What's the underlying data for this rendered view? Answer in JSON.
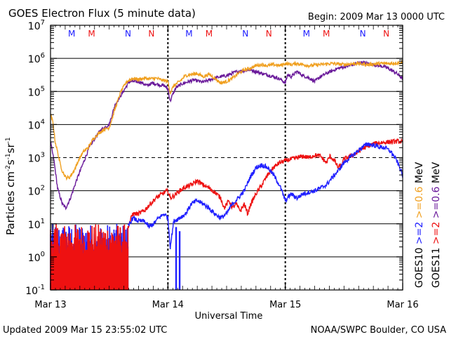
{
  "header": {
    "title": "GOES Electron Flux (5 minute data)",
    "begin": "Begin: 2009 Mar 13 0000 UTC"
  },
  "footer": {
    "updated": "Updated 2009 Mar 15 23:55:02 UTC",
    "credit": "NOAA/SWPC Boulder, CO USA"
  },
  "colors": {
    "g10_high": "#f0a020",
    "g10_low": "#2020ff",
    "g11_high": "#6a1a9a",
    "g11_low": "#ee1111",
    "marker_m": "#1a1aff",
    "marker_n_blue": "#1a1aff"
  },
  "right_legend": {
    "goes10": "GOES10",
    "goes11": "GOES11",
    "g10_low": ">=2",
    "g10_high": ">=0.6",
    "g11_low": ">=2",
    "g11_high": ">=0.6",
    "unit": "MeV"
  },
  "markers": [
    {
      "label": "M",
      "day": 0.18,
      "color": "#1a1aff"
    },
    {
      "label": "M",
      "day": 0.35,
      "color": "#ee1111"
    },
    {
      "label": "N",
      "day": 0.66,
      "color": "#1a1aff"
    },
    {
      "label": "N",
      "day": 0.86,
      "color": "#ee1111"
    },
    {
      "label": "M",
      "day": 1.18,
      "color": "#1a1aff"
    },
    {
      "label": "M",
      "day": 1.35,
      "color": "#ee1111"
    },
    {
      "label": "N",
      "day": 1.66,
      "color": "#1a1aff"
    },
    {
      "label": "N",
      "day": 1.86,
      "color": "#ee1111"
    },
    {
      "label": "M",
      "day": 2.18,
      "color": "#1a1aff"
    },
    {
      "label": "M",
      "day": 2.35,
      "color": "#ee1111"
    },
    {
      "label": "N",
      "day": 2.66,
      "color": "#1a1aff"
    },
    {
      "label": "N",
      "day": 2.86,
      "color": "#ee1111"
    }
  ],
  "chart_data": {
    "type": "line",
    "title": "GOES Electron Flux (5 minute data)",
    "xlabel": "Universal Time",
    "ylabel_main": "Particles cm",
    "ylabel_sup1": "-2",
    "ylabel_mid": "s",
    "ylabel_sup2": "-1",
    "ylabel_mid2": "sr",
    "ylabel_sup3": "-1",
    "x_unit": "days since Mar 13 0000 UTC",
    "xlim": [
      0,
      3
    ],
    "ylim": [
      0.1,
      10000000
    ],
    "y_scale": "log",
    "x_ticks": [
      {
        "value": 0,
        "label": "Mar 13"
      },
      {
        "value": 1,
        "label": "Mar 14"
      },
      {
        "value": 2,
        "label": "Mar 15"
      },
      {
        "value": 3,
        "label": "Mar 16"
      }
    ],
    "y_ticks": [
      {
        "exp": -1,
        "base": "10",
        "sup": "-1"
      },
      {
        "exp": 0,
        "base": "10",
        "sup": "0"
      },
      {
        "exp": 1,
        "base": "10",
        "sup": "1"
      },
      {
        "exp": 2,
        "base": "10",
        "sup": "2"
      },
      {
        "exp": 3,
        "base": "10",
        "sup": "3"
      },
      {
        "exp": 4,
        "base": "10",
        "sup": "4"
      },
      {
        "exp": 5,
        "base": "10",
        "sup": "5"
      },
      {
        "exp": 6,
        "base": "10",
        "sup": "6"
      },
      {
        "exp": 7,
        "base": "10",
        "sup": "7"
      }
    ],
    "hlines_solid": [
      1,
      10,
      100,
      10000,
      100000,
      1000000
    ],
    "hlines_dashed": [
      1000
    ],
    "series": [
      {
        "id": "g11_high",
        "color": "#6a1a9a",
        "noise": 0.05,
        "points": [
          [
            0,
            3000
          ],
          [
            0.03,
            800
          ],
          [
            0.06,
            120
          ],
          [
            0.1,
            40
          ],
          [
            0.13,
            30
          ],
          [
            0.17,
            60
          ],
          [
            0.22,
            200
          ],
          [
            0.28,
            700
          ],
          [
            0.33,
            2000
          ],
          [
            0.38,
            4000
          ],
          [
            0.43,
            7000
          ],
          [
            0.5,
            10000
          ],
          [
            0.55,
            40000
          ],
          [
            0.62,
            100000
          ],
          [
            0.67,
            200000
          ],
          [
            0.72,
            200000
          ],
          [
            0.77,
            190000
          ],
          [
            0.82,
            150000
          ],
          [
            0.87,
            180000
          ],
          [
            0.92,
            160000
          ],
          [
            0.97,
            150000
          ],
          [
            1.0,
            120000
          ],
          [
            1.02,
            50000
          ],
          [
            1.04,
            80000
          ],
          [
            1.07,
            130000
          ],
          [
            1.12,
            170000
          ],
          [
            1.18,
            200000
          ],
          [
            1.22,
            220000
          ],
          [
            1.3,
            190000
          ],
          [
            1.38,
            240000
          ],
          [
            1.45,
            280000
          ],
          [
            1.5,
            300000
          ],
          [
            1.57,
            380000
          ],
          [
            1.63,
            420000
          ],
          [
            1.7,
            450000
          ],
          [
            1.75,
            400000
          ],
          [
            1.8,
            350000
          ],
          [
            1.87,
            300000
          ],
          [
            1.93,
            260000
          ],
          [
            1.97,
            220000
          ],
          [
            2.0,
            180000
          ],
          [
            2.02,
            320000
          ],
          [
            2.05,
            280000
          ],
          [
            2.1,
            400000
          ],
          [
            2.15,
            300000
          ],
          [
            2.2,
            260000
          ],
          [
            2.25,
            200000
          ],
          [
            2.3,
            280000
          ],
          [
            2.35,
            350000
          ],
          [
            2.4,
            420000
          ],
          [
            2.45,
            500000
          ],
          [
            2.5,
            550000
          ],
          [
            2.55,
            600000
          ],
          [
            2.6,
            700000
          ],
          [
            2.65,
            750000
          ],
          [
            2.7,
            700000
          ],
          [
            2.75,
            650000
          ],
          [
            2.8,
            600000
          ],
          [
            2.85,
            550000
          ],
          [
            2.9,
            450000
          ],
          [
            2.95,
            350000
          ],
          [
            3.0,
            240000
          ]
        ]
      },
      {
        "id": "g10_high",
        "color": "#f0a020",
        "noise": 0.05,
        "points": [
          [
            0,
            20000
          ],
          [
            0.02,
            12000
          ],
          [
            0.04,
            3000
          ],
          [
            0.06,
            1500
          ],
          [
            0.08,
            700
          ],
          [
            0.1,
            400
          ],
          [
            0.13,
            250
          ],
          [
            0.16,
            250
          ],
          [
            0.2,
            400
          ],
          [
            0.25,
            1000
          ],
          [
            0.28,
            1500
          ],
          [
            0.32,
            2000
          ],
          [
            0.36,
            3500
          ],
          [
            0.4,
            5000
          ],
          [
            0.45,
            7000
          ],
          [
            0.5,
            8000
          ],
          [
            0.55,
            30000
          ],
          [
            0.6,
            100000
          ],
          [
            0.65,
            200000
          ],
          [
            0.7,
            250000
          ],
          [
            0.75,
            230000
          ],
          [
            0.8,
            250000
          ],
          [
            0.85,
            240000
          ],
          [
            0.9,
            250000
          ],
          [
            0.95,
            220000
          ],
          [
            1.0,
            200000
          ],
          [
            1.02,
            90000
          ],
          [
            1.05,
            150000
          ],
          [
            1.1,
            200000
          ],
          [
            1.15,
            300000
          ],
          [
            1.2,
            330000
          ],
          [
            1.25,
            350000
          ],
          [
            1.3,
            280000
          ],
          [
            1.35,
            330000
          ],
          [
            1.4,
            250000
          ],
          [
            1.45,
            180000
          ],
          [
            1.5,
            200000
          ],
          [
            1.55,
            250000
          ],
          [
            1.6,
            350000
          ],
          [
            1.65,
            450000
          ],
          [
            1.7,
            500000
          ],
          [
            1.75,
            600000
          ],
          [
            1.8,
            650000
          ],
          [
            1.85,
            600000
          ],
          [
            1.9,
            650000
          ],
          [
            1.95,
            600000
          ],
          [
            2.0,
            700000
          ],
          [
            2.05,
            650000
          ],
          [
            2.1,
            700000
          ],
          [
            2.2,
            600000
          ],
          [
            2.3,
            650000
          ],
          [
            2.4,
            700000
          ],
          [
            2.5,
            650000
          ],
          [
            2.6,
            700000
          ],
          [
            2.7,
            650000
          ],
          [
            2.8,
            700000
          ],
          [
            2.9,
            700000
          ],
          [
            3.0,
            750000
          ]
        ]
      },
      {
        "id": "g11_low",
        "color": "#ee1111",
        "noise": 0.07,
        "points": [
          [
            0.66,
            8
          ],
          [
            0.7,
            20
          ],
          [
            0.75,
            20
          ],
          [
            0.8,
            25
          ],
          [
            0.85,
            40
          ],
          [
            0.9,
            60
          ],
          [
            0.95,
            80
          ],
          [
            1.0,
            100
          ],
          [
            1.02,
            60
          ],
          [
            1.05,
            70
          ],
          [
            1.1,
            100
          ],
          [
            1.15,
            130
          ],
          [
            1.2,
            150
          ],
          [
            1.25,
            200
          ],
          [
            1.3,
            150
          ],
          [
            1.35,
            120
          ],
          [
            1.4,
            90
          ],
          [
            1.45,
            60
          ],
          [
            1.48,
            30
          ],
          [
            1.52,
            50
          ],
          [
            1.55,
            30
          ],
          [
            1.58,
            40
          ],
          [
            1.6,
            30
          ],
          [
            1.62,
            25
          ],
          [
            1.65,
            40
          ],
          [
            1.68,
            20
          ],
          [
            1.7,
            35
          ],
          [
            1.75,
            80
          ],
          [
            1.8,
            150
          ],
          [
            1.85,
            300
          ],
          [
            1.9,
            500
          ],
          [
            1.95,
            700
          ],
          [
            2.0,
            800
          ],
          [
            2.05,
            900
          ],
          [
            2.1,
            1000
          ],
          [
            2.15,
            1100
          ],
          [
            2.2,
            1000
          ],
          [
            2.25,
            1200
          ],
          [
            2.3,
            1100
          ],
          [
            2.35,
            700
          ],
          [
            2.38,
            1100
          ],
          [
            2.42,
            800
          ],
          [
            2.45,
            500
          ],
          [
            2.48,
            600
          ],
          [
            2.5,
            900
          ],
          [
            2.55,
            1100
          ],
          [
            2.6,
            1300
          ],
          [
            2.65,
            1800
          ],
          [
            2.7,
            2200
          ],
          [
            2.75,
            2600
          ],
          [
            2.8,
            2800
          ],
          [
            2.85,
            2900
          ],
          [
            2.9,
            3000
          ],
          [
            2.95,
            3100
          ],
          [
            3.0,
            3000
          ]
        ]
      },
      {
        "id": "g10_low",
        "color": "#2020ff",
        "noise": 0.07,
        "points": [
          [
            0.66,
            8
          ],
          [
            0.7,
            15
          ],
          [
            0.75,
            12
          ],
          [
            0.8,
            12
          ],
          [
            0.84,
            8
          ],
          [
            0.88,
            10
          ],
          [
            0.92,
            15
          ],
          [
            0.97,
            20
          ],
          [
            1.0,
            15
          ],
          [
            1.02,
            2
          ],
          [
            1.05,
            12
          ],
          [
            1.1,
            15
          ],
          [
            1.15,
            20
          ],
          [
            1.2,
            40
          ],
          [
            1.25,
            50
          ],
          [
            1.3,
            40
          ],
          [
            1.35,
            30
          ],
          [
            1.4,
            20
          ],
          [
            1.45,
            15
          ],
          [
            1.5,
            20
          ],
          [
            1.55,
            40
          ],
          [
            1.6,
            60
          ],
          [
            1.65,
            100
          ],
          [
            1.7,
            250
          ],
          [
            1.75,
            500
          ],
          [
            1.8,
            600
          ],
          [
            1.85,
            500
          ],
          [
            1.9,
            300
          ],
          [
            1.95,
            150
          ],
          [
            2.0,
            50
          ],
          [
            2.05,
            80
          ],
          [
            2.1,
            60
          ],
          [
            2.15,
            80
          ],
          [
            2.2,
            90
          ],
          [
            2.25,
            100
          ],
          [
            2.3,
            120
          ],
          [
            2.35,
            150
          ],
          [
            2.4,
            250
          ],
          [
            2.45,
            400
          ],
          [
            2.5,
            700
          ],
          [
            2.55,
            1000
          ],
          [
            2.6,
            1400
          ],
          [
            2.65,
            2000
          ],
          [
            2.7,
            2600
          ],
          [
            2.75,
            2400
          ],
          [
            2.8,
            2100
          ],
          [
            2.85,
            2000
          ],
          [
            2.9,
            1500
          ],
          [
            2.95,
            800
          ],
          [
            3.0,
            300
          ]
        ]
      }
    ],
    "noise_band": {
      "x_range": [
        0,
        0.66
      ],
      "spikes": 110,
      "top": 10,
      "bottom": 0.1,
      "colors": [
        "#2020ff",
        "#ee1111"
      ]
    },
    "dips": [
      {
        "color": "#2020ff",
        "x": 1.07,
        "top": 8,
        "bottom": 0.1
      },
      {
        "color": "#2020ff",
        "x": 1.1,
        "top": 6,
        "bottom": 0.1
      }
    ]
  }
}
